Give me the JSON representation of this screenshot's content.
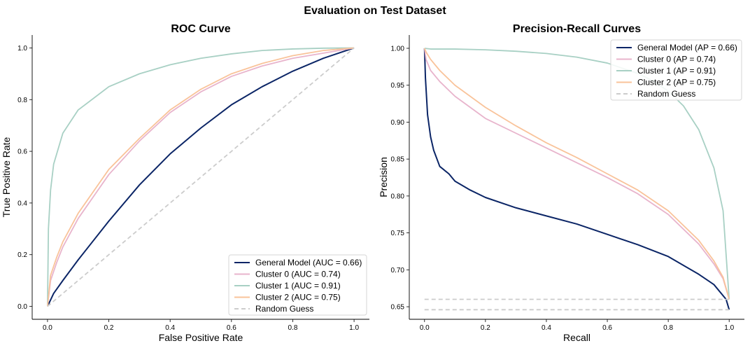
{
  "figure_title": "Evaluation on Test Dataset",
  "colors": {
    "general": "#0b2566",
    "cluster0": "#e8b4cc",
    "cluster1": "#a8d0c4",
    "cluster2": "#f9c39a",
    "random": "#cccccc"
  },
  "chart_data": [
    {
      "type": "line",
      "title": "ROC Curve",
      "xlabel": "False Positive Rate",
      "ylabel": "True Positive Rate",
      "xlim": [
        -0.05,
        1.05
      ],
      "ylim": [
        -0.05,
        1.05
      ],
      "xticks": [
        "0.0",
        "0.2",
        "0.4",
        "0.6",
        "0.8",
        "1.0"
      ],
      "yticks": [
        "0.0",
        "0.2",
        "0.4",
        "0.6",
        "0.8",
        "1.0"
      ],
      "legend_position": "lower-right",
      "grid": false,
      "series": [
        {
          "name": "General Model (AUC = 0.66)",
          "color_key": "general",
          "dash": false,
          "x": [
            0,
            0.02,
            0.05,
            0.1,
            0.2,
            0.3,
            0.4,
            0.5,
            0.6,
            0.7,
            0.8,
            0.9,
            1.0
          ],
          "y": [
            0,
            0.05,
            0.1,
            0.18,
            0.33,
            0.47,
            0.59,
            0.69,
            0.78,
            0.85,
            0.91,
            0.96,
            1.0
          ]
        },
        {
          "name": "Cluster 0 (AUC = 0.74)",
          "color_key": "cluster0",
          "dash": false,
          "x": [
            0,
            0.01,
            0.03,
            0.05,
            0.1,
            0.2,
            0.3,
            0.4,
            0.5,
            0.6,
            0.7,
            0.8,
            0.9,
            1.0
          ],
          "y": [
            0,
            0.1,
            0.17,
            0.23,
            0.34,
            0.51,
            0.64,
            0.75,
            0.83,
            0.89,
            0.93,
            0.96,
            0.98,
            1.0
          ]
        },
        {
          "name": "Cluster 1 (AUC = 0.91)",
          "color_key": "cluster1",
          "dash": false,
          "x": [
            0,
            0.003,
            0.01,
            0.02,
            0.05,
            0.1,
            0.2,
            0.3,
            0.4,
            0.5,
            0.6,
            0.7,
            0.8,
            0.9,
            1.0
          ],
          "y": [
            0,
            0.3,
            0.45,
            0.55,
            0.67,
            0.76,
            0.85,
            0.9,
            0.935,
            0.96,
            0.977,
            0.99,
            0.996,
            0.999,
            1.0
          ]
        },
        {
          "name": "Cluster 2 (AUC = 0.75)",
          "color_key": "cluster2",
          "dash": false,
          "x": [
            0,
            0.01,
            0.03,
            0.05,
            0.1,
            0.2,
            0.3,
            0.4,
            0.5,
            0.6,
            0.7,
            0.8,
            0.9,
            1.0
          ],
          "y": [
            0,
            0.12,
            0.19,
            0.25,
            0.36,
            0.53,
            0.65,
            0.76,
            0.84,
            0.9,
            0.94,
            0.97,
            0.99,
            1.0
          ]
        },
        {
          "name": "Random Guess",
          "color_key": "random",
          "dash": true,
          "x": [
            0,
            1
          ],
          "y": [
            0,
            1
          ]
        }
      ]
    },
    {
      "type": "line",
      "title": "Precision-Recall Curves",
      "xlabel": "Recall",
      "ylabel": "Precision",
      "xlim": [
        -0.05,
        1.05
      ],
      "ylim": [
        0.633,
        1.018
      ],
      "xticks": [
        "0.0",
        "0.2",
        "0.4",
        "0.6",
        "0.8",
        "1.0"
      ],
      "yticks": [
        "0.65",
        "0.70",
        "0.75",
        "0.80",
        "0.85",
        "0.90",
        "0.95",
        "1.00"
      ],
      "legend_position": "upper-right",
      "grid": false,
      "series": [
        {
          "name": "General Model (AP = 0.66)",
          "color_key": "general",
          "dash": false,
          "x": [
            0,
            0.003,
            0.01,
            0.02,
            0.03,
            0.05,
            0.08,
            0.1,
            0.15,
            0.2,
            0.3,
            0.4,
            0.5,
            0.6,
            0.7,
            0.8,
            0.9,
            0.95,
            0.99,
            1.0
          ],
          "y": [
            1.0,
            0.96,
            0.91,
            0.88,
            0.862,
            0.84,
            0.83,
            0.82,
            0.808,
            0.798,
            0.784,
            0.773,
            0.762,
            0.748,
            0.734,
            0.718,
            0.694,
            0.68,
            0.66,
            0.646
          ]
        },
        {
          "name": "Cluster 0 (AP = 0.74)",
          "color_key": "cluster0",
          "dash": false,
          "x": [
            0,
            0.005,
            0.02,
            0.05,
            0.1,
            0.2,
            0.3,
            0.4,
            0.5,
            0.6,
            0.7,
            0.8,
            0.9,
            0.95,
            0.98,
            1.0
          ],
          "y": [
            1.0,
            0.985,
            0.97,
            0.955,
            0.935,
            0.905,
            0.885,
            0.865,
            0.845,
            0.825,
            0.803,
            0.775,
            0.735,
            0.708,
            0.688,
            0.66
          ]
        },
        {
          "name": "Cluster 1 (AP = 0.91)",
          "color_key": "cluster1",
          "dash": false,
          "x": [
            0,
            0.02,
            0.1,
            0.2,
            0.3,
            0.4,
            0.5,
            0.6,
            0.7,
            0.75,
            0.8,
            0.85,
            0.9,
            0.95,
            0.98,
            1.0
          ],
          "y": [
            1.0,
            0.999,
            0.999,
            0.998,
            0.996,
            0.993,
            0.988,
            0.98,
            0.966,
            0.956,
            0.942,
            0.922,
            0.89,
            0.838,
            0.78,
            0.66
          ]
        },
        {
          "name": "Cluster 2 (AP = 0.75)",
          "color_key": "cluster2",
          "dash": false,
          "x": [
            0,
            0.005,
            0.02,
            0.05,
            0.1,
            0.2,
            0.3,
            0.4,
            0.5,
            0.6,
            0.7,
            0.8,
            0.9,
            0.95,
            0.98,
            1.0
          ],
          "y": [
            1.0,
            0.995,
            0.985,
            0.97,
            0.95,
            0.92,
            0.895,
            0.872,
            0.852,
            0.83,
            0.808,
            0.78,
            0.74,
            0.712,
            0.69,
            0.66
          ]
        },
        {
          "name": "Random Guess",
          "color_key": "random",
          "dash": true,
          "x": [
            0,
            1
          ],
          "y": [
            0.646,
            0.646
          ]
        },
        {
          "name": "",
          "color_key": "random",
          "dash": true,
          "x": [
            0,
            1
          ],
          "y": [
            0.66,
            0.66
          ]
        }
      ]
    }
  ]
}
